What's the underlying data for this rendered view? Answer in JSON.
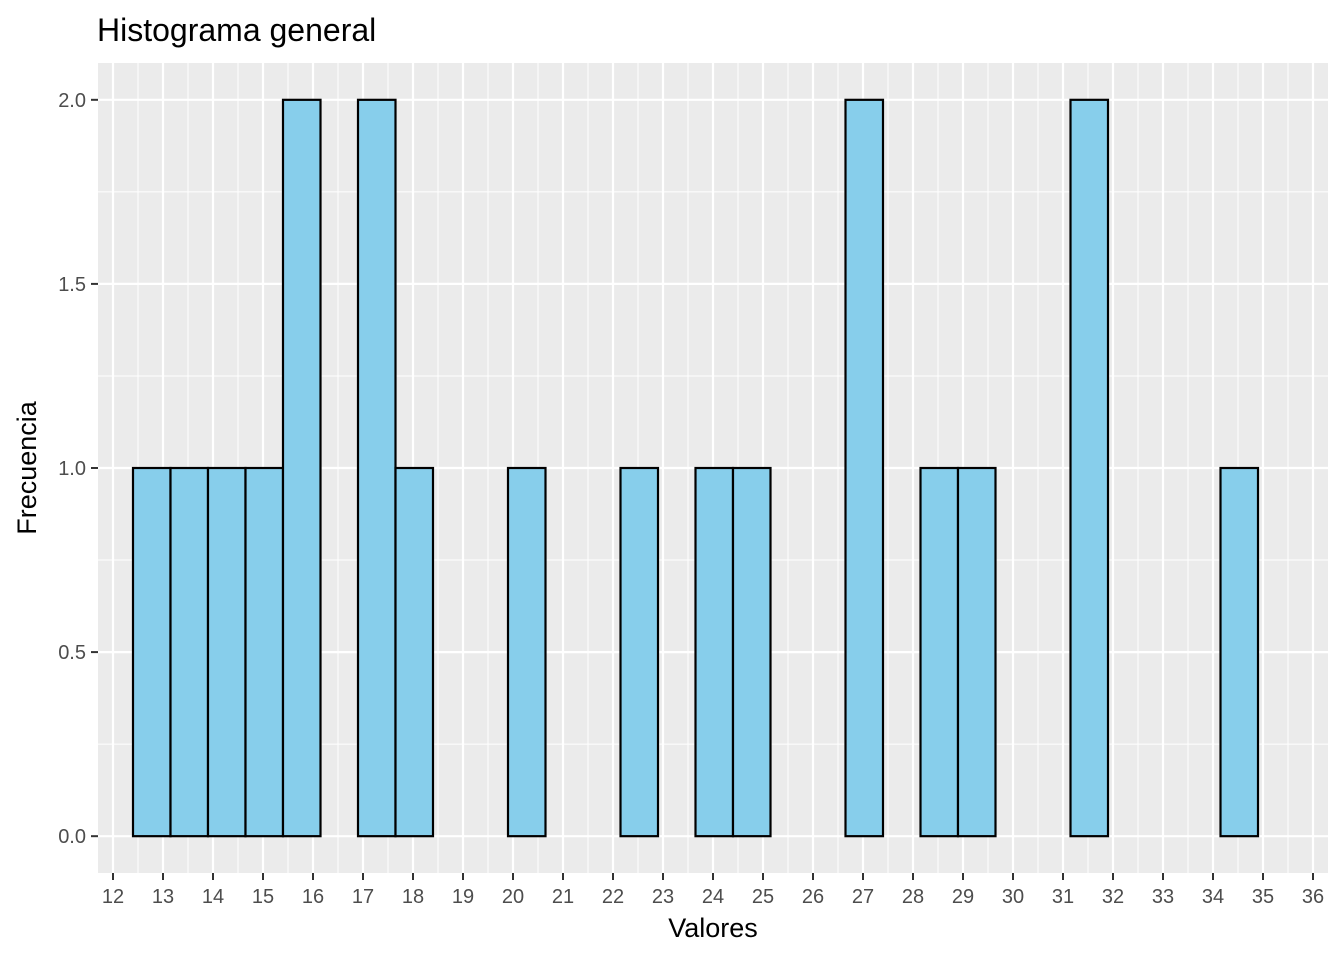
{
  "chart_data": {
    "type": "bar",
    "title": "Histograma general",
    "xlabel": "Valores",
    "ylabel": "Frecuencia",
    "xlim": [
      11.7,
      36.3
    ],
    "ylim": [
      -0.1,
      2.1
    ],
    "x_ticks": [
      "12",
      "13",
      "14",
      "15",
      "16",
      "17",
      "18",
      "19",
      "20",
      "21",
      "22",
      "23",
      "24",
      "25",
      "26",
      "27",
      "28",
      "29",
      "30",
      "31",
      "32",
      "33",
      "34",
      "35",
      "36"
    ],
    "y_ticks": [
      "0.0",
      "0.5",
      "1.0",
      "1.5",
      "2.0"
    ],
    "grid": true,
    "bin_edges": [
      12.4,
      13.15,
      13.9,
      14.65,
      15.4,
      16.15,
      16.9,
      17.65,
      18.4,
      19.15,
      19.9,
      20.65,
      21.4,
      22.15,
      22.9,
      23.65,
      24.4,
      25.15,
      25.9,
      26.65,
      27.4,
      28.15,
      28.9,
      29.65,
      30.4,
      31.15,
      31.9,
      32.65,
      33.4,
      34.15,
      34.9
    ],
    "counts": [
      1,
      1,
      1,
      1,
      2,
      0,
      2,
      1,
      0,
      0,
      1,
      0,
      0,
      1,
      0,
      1,
      1,
      0,
      0,
      2,
      0,
      1,
      1,
      0,
      0,
      2,
      0,
      0,
      0,
      1
    ],
    "colors": {
      "bar_fill": "#87CEEB",
      "bar_stroke": "#000000",
      "panel": "#EBEBEB",
      "grid": "#FFFFFF"
    }
  }
}
